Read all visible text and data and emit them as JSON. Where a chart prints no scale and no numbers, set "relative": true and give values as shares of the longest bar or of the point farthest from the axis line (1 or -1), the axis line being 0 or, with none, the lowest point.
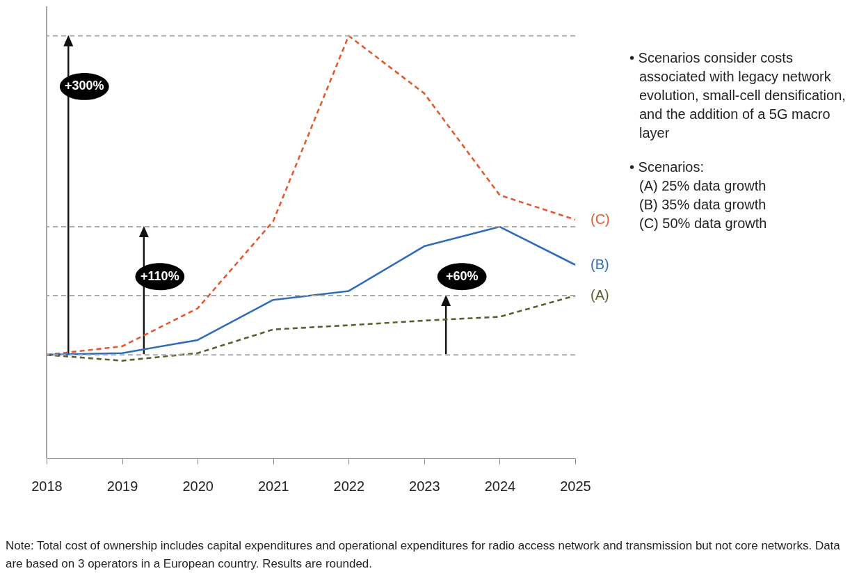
{
  "chart_data": {
    "type": "line",
    "relative": true,
    "grid": false,
    "categories": [
      "2018",
      "2019",
      "2020",
      "2021",
      "2022",
      "2023",
      "2024",
      "2025"
    ],
    "series": [
      {
        "name": "(C)",
        "color": "#e25a32",
        "line_style": "dashed",
        "values": [
          0.245,
          0.265,
          0.355,
          0.561,
          1,
          0.864,
          0.623,
          0.565
        ]
      },
      {
        "name": "(B)",
        "color": "#2f6db8",
        "line_style": "solid",
        "values": [
          0.245,
          0.249,
          0.28,
          0.375,
          0.396,
          0.502,
          0.548,
          0.458
        ]
      },
      {
        "name": "(A)",
        "color": "#56622e",
        "line_style": "dashed",
        "values": [
          0.245,
          0.231,
          0.249,
          0.305,
          0.315,
          0.326,
          0.335,
          0.385
        ]
      }
    ],
    "ref_lines": [
      {
        "axis": "y",
        "value": 1,
        "color": "#aaaaaa",
        "line_style": "dashed"
      },
      {
        "axis": "y",
        "value": 0.548,
        "color": "#aaaaaa",
        "line_style": "dashed"
      },
      {
        "axis": "y",
        "value": 0.385,
        "color": "#aaaaaa",
        "line_style": "dashed"
      },
      {
        "axis": "y",
        "value": 0.245,
        "color": "#aaaaaa",
        "line_style": "dashed"
      }
    ],
    "annotations": [
      "+300%",
      "+110%",
      "+60%",
      "• Scenarios consider costs associated with legacy network evolution, small-cell densification, and the addition of a 5G macro layer",
      "• Scenarios:\n(A) 25% data growth\n(B) 35% data growth\n(C) 50% data growth",
      "Note: Total cost of ownership includes capital expenditures and operational expenditures for radio access network and transmission but not core networks. Data are based on 3 operators in a European country. Results are rounded."
    ]
  }
}
